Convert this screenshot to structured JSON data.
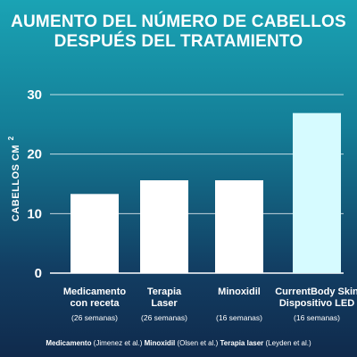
{
  "title": {
    "line1": "AUMENTO DEL NÚMERO DE CABELLOS",
    "line2": "DESPUÉS DEL TRATAMIENTO"
  },
  "chart_data": {
    "type": "bar",
    "categories": [
      [
        "Medicamento",
        "con receta"
      ],
      [
        "Terapia",
        "Laser"
      ],
      [
        "Minoxidil"
      ],
      [
        "CurrentBody Skin",
        "Dispositivo LED"
      ]
    ],
    "durations": [
      "(26 semanas)",
      "(26 semanas)",
      "(16 semanas)",
      "(16 semanas)"
    ],
    "values": [
      13.3,
      15.6,
      15.6,
      26.9
    ],
    "ylabel": "CABELLOS CM",
    "ylabel_superscript": "2",
    "ylim": [
      0,
      30
    ],
    "yticks": [
      0,
      10,
      20,
      30
    ],
    "grid": true,
    "colors": {
      "bar": "#ffffff",
      "highlight_bar": "#d6fbff",
      "grid": "#ffffff"
    },
    "highlight_index": 3
  },
  "footer": {
    "parts": [
      {
        "bold": "Medicamento",
        "text": " (Jimenez et al.) "
      },
      {
        "bold": "Minoxidil",
        "text": " (Olsen et al.) "
      },
      {
        "bold": "Terapia laser",
        "text": " (Leyden et al.)"
      }
    ]
  }
}
